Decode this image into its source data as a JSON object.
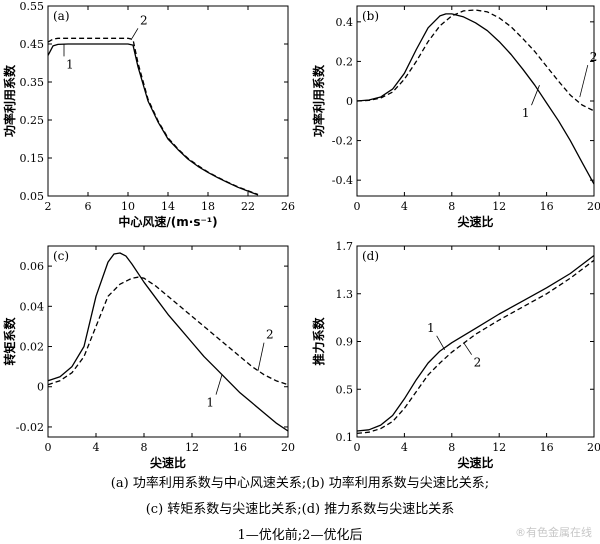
{
  "chart_data": [
    {
      "type": "line",
      "panel_label": "(a)",
      "xlabel": "中心风速/(m·s⁻¹)",
      "ylabel": "功率利用系数",
      "xlim": [
        2,
        26
      ],
      "ylim": [
        0.05,
        0.55
      ],
      "xticks": [
        "2",
        "6",
        "10",
        "14",
        "18",
        "22",
        "26"
      ],
      "yticks": [
        "0.05",
        "0.15",
        "0.25",
        "0.35",
        "0.45",
        "0.55"
      ],
      "curve_labels": [
        "1",
        "2"
      ],
      "series": [
        {
          "name": "1",
          "style": "solid",
          "x": [
            2,
            2.5,
            3,
            4,
            6,
            8,
            10,
            10.5,
            11,
            12,
            13,
            14,
            15,
            16,
            17,
            18,
            19,
            20,
            21,
            22,
            23
          ],
          "y": [
            0.42,
            0.445,
            0.449,
            0.45,
            0.45,
            0.45,
            0.45,
            0.447,
            0.39,
            0.3,
            0.245,
            0.2,
            0.172,
            0.147,
            0.128,
            0.112,
            0.098,
            0.085,
            0.073,
            0.063,
            0.053
          ]
        },
        {
          "name": "2",
          "style": "dashed",
          "x": [
            2,
            2.5,
            3,
            4,
            6,
            8,
            10,
            10.5,
            11,
            12,
            13,
            14,
            15,
            16,
            17,
            18,
            19,
            20,
            21,
            22,
            23
          ],
          "y": [
            0.455,
            0.463,
            0.465,
            0.465,
            0.465,
            0.465,
            0.465,
            0.462,
            0.4,
            0.305,
            0.248,
            0.203,
            0.174,
            0.149,
            0.13,
            0.113,
            0.099,
            0.086,
            0.074,
            0.064,
            0.054
          ]
        }
      ]
    },
    {
      "type": "line",
      "panel_label": "(b)",
      "xlabel": "尖速比",
      "ylabel": "功率利用系数",
      "xlim": [
        0,
        20
      ],
      "ylim": [
        -0.48,
        0.48
      ],
      "xticks": [
        "0",
        "4",
        "8",
        "12",
        "16",
        "20"
      ],
      "yticks": [
        "-0.4",
        "-0.2",
        "0",
        "0.2",
        "0.4"
      ],
      "tick_values": [
        -0.4,
        -0.2,
        0,
        0.2,
        0.4
      ],
      "curve_labels": [
        "1",
        "2"
      ],
      "series": [
        {
          "name": "1",
          "style": "solid",
          "x": [
            0,
            1,
            2,
            3,
            4,
            5,
            6,
            7,
            7.5,
            8,
            9,
            10,
            11,
            12,
            13,
            14,
            15,
            16,
            17,
            18,
            19,
            20
          ],
          "y": [
            0,
            0.005,
            0.02,
            0.06,
            0.14,
            0.26,
            0.37,
            0.43,
            0.44,
            0.44,
            0.425,
            0.395,
            0.355,
            0.3,
            0.235,
            0.16,
            0.08,
            -0.01,
            -0.1,
            -0.2,
            -0.31,
            -0.42
          ]
        },
        {
          "name": "2",
          "style": "dashed",
          "x": [
            0,
            1,
            2,
            3,
            4,
            5,
            6,
            7,
            8,
            9,
            10,
            11,
            12,
            13,
            14,
            15,
            16,
            17,
            18,
            19,
            20
          ],
          "y": [
            0,
            0.003,
            0.015,
            0.045,
            0.11,
            0.2,
            0.3,
            0.38,
            0.43,
            0.455,
            0.46,
            0.45,
            0.42,
            0.375,
            0.315,
            0.25,
            0.175,
            0.1,
            0.03,
            -0.02,
            -0.05
          ]
        }
      ]
    },
    {
      "type": "line",
      "panel_label": "(c)",
      "xlabel": "尖速比",
      "ylabel": "转矩系数",
      "xlim": [
        0,
        20
      ],
      "ylim": [
        -0.025,
        0.07
      ],
      "xticks": [
        "0",
        "4",
        "8",
        "12",
        "16",
        "20"
      ],
      "yticks": [
        "-0.02",
        "0",
        "0.02",
        "0.04",
        "0.06"
      ],
      "tick_values": [
        -0.02,
        0,
        0.02,
        0.04,
        0.06
      ],
      "curve_labels": [
        "1",
        "2"
      ],
      "series": [
        {
          "name": "1",
          "style": "solid",
          "x": [
            0,
            1,
            2,
            3,
            4,
            5,
            5.5,
            6,
            6.5,
            7,
            8,
            9,
            10,
            11,
            12,
            13,
            14,
            15,
            16,
            17,
            18,
            19,
            20
          ],
          "y": [
            0.003,
            0.005,
            0.01,
            0.02,
            0.045,
            0.062,
            0.066,
            0.0665,
            0.065,
            0.061,
            0.052,
            0.044,
            0.036,
            0.029,
            0.022,
            0.015,
            0.009,
            0.003,
            -0.003,
            -0.008,
            -0.013,
            -0.018,
            -0.022
          ]
        },
        {
          "name": "2",
          "style": "dashed",
          "x": [
            0,
            1,
            2,
            3,
            4,
            5,
            6,
            7,
            7.5,
            8,
            9,
            10,
            11,
            12,
            13,
            14,
            15,
            16,
            17,
            18,
            19,
            20
          ],
          "y": [
            0.001,
            0.003,
            0.007,
            0.015,
            0.03,
            0.045,
            0.051,
            0.054,
            0.0545,
            0.054,
            0.05,
            0.045,
            0.04,
            0.035,
            0.03,
            0.025,
            0.02,
            0.015,
            0.01,
            0.006,
            0.003,
            0.001
          ]
        }
      ]
    },
    {
      "type": "line",
      "panel_label": "(d)",
      "xlabel": "尖速比",
      "ylabel": "推力系数",
      "xlim": [
        0,
        20
      ],
      "ylim": [
        0.1,
        1.7
      ],
      "xticks": [
        "0",
        "4",
        "8",
        "12",
        "16",
        "20"
      ],
      "yticks": [
        "0.1",
        "0.5",
        "0.9",
        "1.3",
        "1.7"
      ],
      "tick_values": [
        0.1,
        0.5,
        0.9,
        1.3,
        1.7
      ],
      "curve_labels": [
        "1",
        "2"
      ],
      "series": [
        {
          "name": "1",
          "style": "solid",
          "x": [
            0,
            1,
            2,
            3,
            4,
            5,
            6,
            7,
            8,
            10,
            12,
            14,
            16,
            18,
            20
          ],
          "y": [
            0.15,
            0.16,
            0.2,
            0.28,
            0.42,
            0.58,
            0.72,
            0.82,
            0.89,
            1.01,
            1.13,
            1.24,
            1.35,
            1.47,
            1.62
          ]
        },
        {
          "name": "2",
          "style": "dashed",
          "x": [
            0,
            1,
            2,
            3,
            4,
            5,
            6,
            7,
            8,
            10,
            12,
            14,
            16,
            18,
            20
          ],
          "y": [
            0.13,
            0.14,
            0.17,
            0.23,
            0.34,
            0.48,
            0.62,
            0.72,
            0.81,
            0.96,
            1.08,
            1.19,
            1.3,
            1.43,
            1.58
          ]
        }
      ]
    }
  ],
  "captions": {
    "line1": "(a)  功率利用系数与中心风速关系;(b)  功率利用系数与尖速比关系;",
    "line2": "(c)  转矩系数与尖速比关系;(d)  推力系数与尖速比关系",
    "line3": "1—优化前;2—优化后"
  },
  "watermark": "®有色金属在线"
}
